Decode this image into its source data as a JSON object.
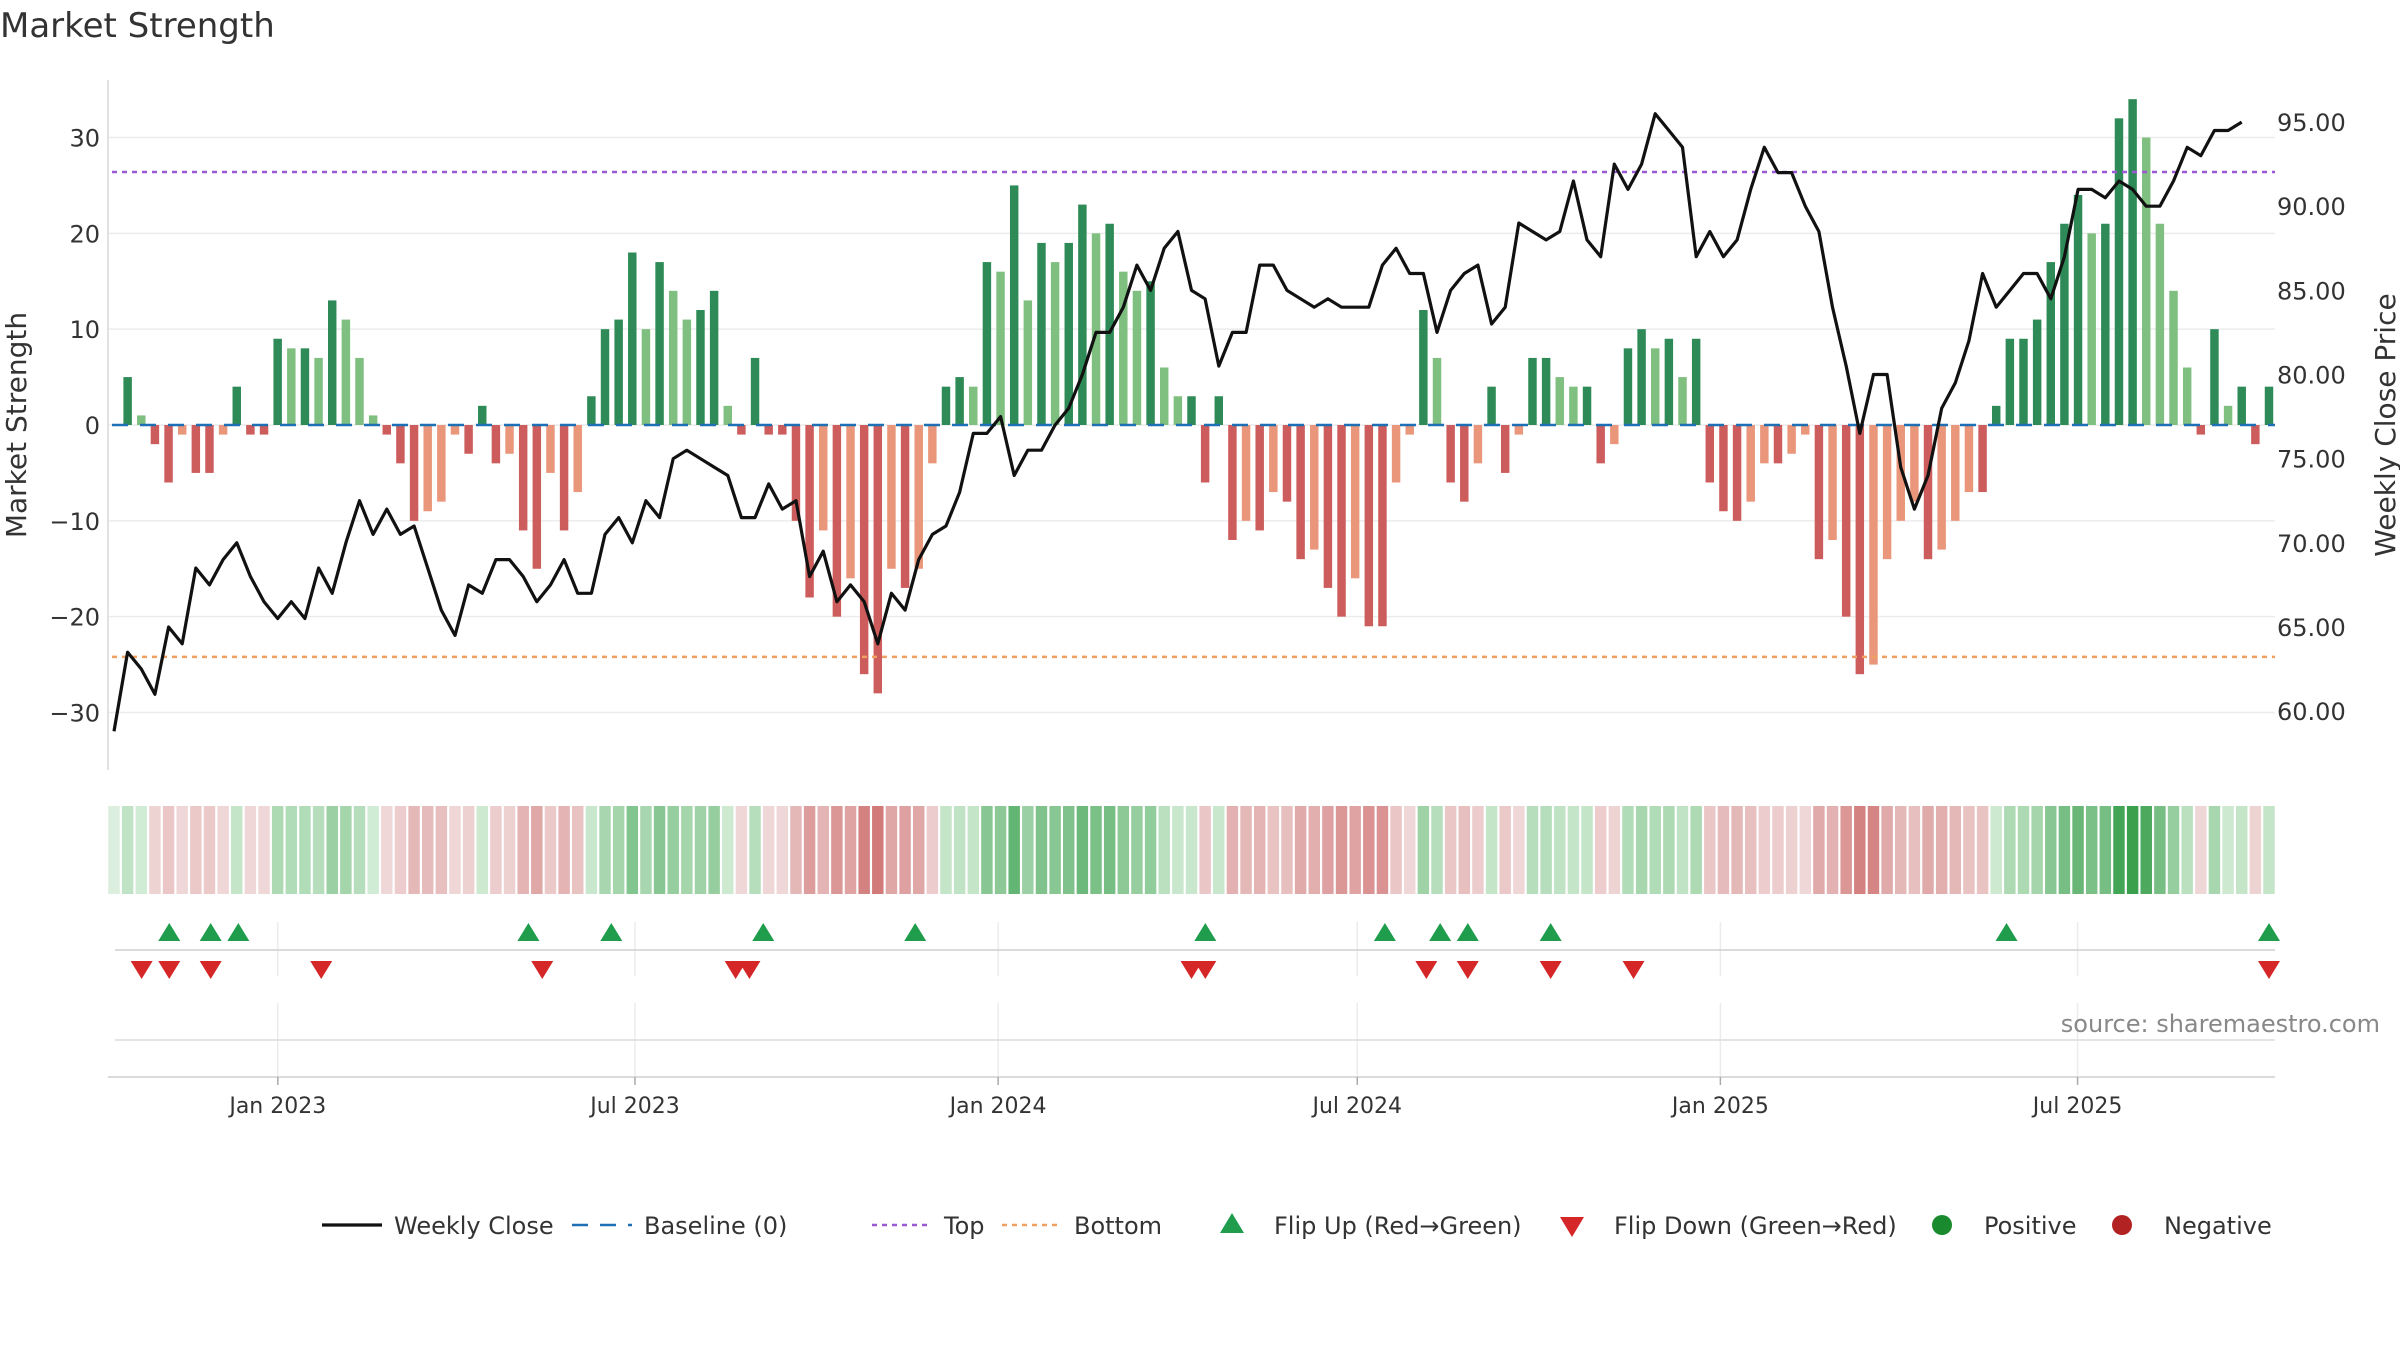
{
  "chart_data": {
    "type": "bar",
    "title": "Market Strength",
    "ylabel_left": "Market Strength",
    "ylabel_right": "Weekly Close Price",
    "left_axis": {
      "ylim": [
        -36,
        36
      ],
      "ticks": [
        30,
        20,
        10,
        0,
        -10,
        -20,
        -30
      ],
      "tick_labels": [
        "30",
        "20",
        "10",
        "0",
        "−10",
        "−20",
        "−30"
      ]
    },
    "right_axis": {
      "ylim": [
        56.5,
        97.5
      ],
      "ticks": [
        95,
        90,
        85,
        80,
        75,
        70,
        65,
        60
      ],
      "tick_labels": [
        "95.00",
        "90.00",
        "85.00",
        "80.00",
        "75.00",
        "70.00",
        "65.00",
        "60.00"
      ]
    },
    "top_threshold": 26.4,
    "bottom_threshold": -24.2,
    "baseline": 0,
    "x_start": "2022-10-10",
    "x_end": "2025-10-06",
    "x_ticks": [
      "2023-01-01",
      "2023-07-01",
      "2024-01-01",
      "2024-07-01",
      "2025-01-01",
      "2025-07-01"
    ],
    "x_tick_labels": [
      "Jan 2023",
      "Jul 2023",
      "Jan 2024",
      "Jul 2024",
      "Jan 2025",
      "Jul 2025"
    ],
    "strength": [
      0,
      5,
      1,
      -2,
      -6,
      -1,
      -5,
      -5,
      -1,
      4,
      -1,
      -1,
      9,
      8,
      8,
      7,
      13,
      11,
      7,
      1,
      -1,
      -4,
      -10,
      -9,
      -8,
      -1,
      -3,
      2,
      -4,
      -3,
      -11,
      -15,
      -5,
      -11,
      -7,
      3,
      10,
      11,
      18,
      10,
      17,
      14,
      11,
      12,
      14,
      2,
      -1,
      7,
      -1,
      -1,
      -10,
      -18,
      -11,
      -20,
      -16,
      -26,
      -28,
      -15,
      -17,
      -15,
      -4,
      4,
      5,
      4,
      17,
      16,
      25,
      13,
      19,
      17,
      19,
      23,
      20,
      21,
      16,
      14,
      15,
      6,
      3,
      3,
      -6,
      3,
      -12,
      -10,
      -11,
      -7,
      -8,
      -14,
      -13,
      -17,
      -20,
      -16,
      -21,
      -21,
      -6,
      -1,
      12,
      7,
      -6,
      -8,
      -4,
      4,
      -5,
      -1,
      7,
      7,
      5,
      4,
      4,
      -4,
      -2,
      8,
      10,
      8,
      9,
      5,
      9,
      -6,
      -9,
      -10,
      -8,
      -4,
      -4,
      -3,
      -1,
      -14,
      -12,
      -20,
      -26,
      -25,
      -14,
      -10,
      -8,
      -14,
      -13,
      -10,
      -7,
      -7,
      2,
      9,
      9,
      11,
      17,
      21,
      24,
      20,
      21,
      32,
      34,
      30,
      21,
      14,
      6,
      -1,
      10,
      2,
      4,
      -2,
      4
    ],
    "weekly_close": [
      58.8,
      63.5,
      62.5,
      61.0,
      65.0,
      64.0,
      68.5,
      67.5,
      69.0,
      70.0,
      68.0,
      66.5,
      65.5,
      66.5,
      65.5,
      68.5,
      67.0,
      70.0,
      72.5,
      70.5,
      72.0,
      70.5,
      71.0,
      68.5,
      66.0,
      64.5,
      67.5,
      67.0,
      69.0,
      69.0,
      68.0,
      66.5,
      67.5,
      69.0,
      67.0,
      67.0,
      70.5,
      71.5,
      70.0,
      72.5,
      71.5,
      75.0,
      75.5,
      75.0,
      74.5,
      74.0,
      71.5,
      71.5,
      73.5,
      72.0,
      72.5,
      68.0,
      69.5,
      66.5,
      67.5,
      66.5,
      64.0,
      67.0,
      66.0,
      69.0,
      70.5,
      71.0,
      73.0,
      76.5,
      76.5,
      77.5,
      74.0,
      75.5,
      75.5,
      77.0,
      78.0,
      80.0,
      82.5,
      82.5,
      84.0,
      86.5,
      85.0,
      87.5,
      88.5,
      85.0,
      84.5,
      80.5,
      82.5,
      82.5,
      86.5,
      86.5,
      85.0,
      84.5,
      84.0,
      84.5,
      84.0,
      84.0,
      84.0,
      86.5,
      87.5,
      86.0,
      86.0,
      82.5,
      85.0,
      86.0,
      86.5,
      83.0,
      84.0,
      89.0,
      88.5,
      88.0,
      88.5,
      91.5,
      88.0,
      87.0,
      92.5,
      91.0,
      92.5,
      95.5,
      94.5,
      93.5,
      87.0,
      88.5,
      87.0,
      88.0,
      91.0,
      93.5,
      92.0,
      92.0,
      90.0,
      88.5,
      84.0,
      80.5,
      76.5,
      80.0,
      80.0,
      74.5,
      72.0,
      74.0,
      78.0,
      79.5,
      82.0,
      86.0,
      84.0,
      85.0,
      86.0,
      86.0,
      84.5,
      87.0,
      91.0,
      91.0,
      90.5,
      91.5,
      91.0,
      90.0,
      90.0,
      91.5,
      93.5,
      93.0,
      94.5,
      94.5,
      95.0
    ],
    "flip_up": [
      "2022-11-07",
      "2022-11-28",
      "2022-12-12",
      "2023-05-08",
      "2023-06-19",
      "2023-09-04",
      "2023-11-20",
      "2024-04-15",
      "2024-07-15",
      "2024-08-12",
      "2024-08-26",
      "2024-10-07",
      "2025-05-26",
      "2025-10-06"
    ],
    "flip_down": [
      "2022-10-24",
      "2022-11-07",
      "2022-11-28",
      "2023-01-23",
      "2023-05-15",
      "2023-08-21",
      "2023-08-28",
      "2024-04-08",
      "2024-04-15",
      "2024-08-05",
      "2024-08-26",
      "2024-10-07",
      "2024-11-18",
      "2025-10-06"
    ],
    "legend": [
      {
        "label": "Weekly Close",
        "kind": "line",
        "color": "#111111"
      },
      {
        "label": "Baseline (0)",
        "kind": "dash",
        "color": "#1f6fb5"
      },
      {
        "label": "Top",
        "kind": "dot",
        "color": "#9b59d6"
      },
      {
        "label": "Bottom",
        "kind": "dot",
        "color": "#f0a060"
      },
      {
        "label": "Flip Up (Red→Green)",
        "kind": "tri-up",
        "color": "#1f9d4d"
      },
      {
        "label": "Flip Down (Green→Red)",
        "kind": "tri-down",
        "color": "#d62728"
      },
      {
        "label": "Positive",
        "kind": "circle",
        "color": "#1a8a2e"
      },
      {
        "label": "Negative",
        "kind": "circle",
        "color": "#b22222"
      }
    ],
    "colors": {
      "pos_dark": "#2e8b57",
      "pos_light": "#7fbf7f",
      "neg_dark": "#cd5c5c",
      "neg_light": "#e9967a",
      "line": "#111111",
      "baseline": "#1f6fb5",
      "top": "#9b59d6",
      "bottom": "#f0a060",
      "flip_up": "#1f9d4d",
      "flip_down": "#d62728"
    },
    "source": "source: sharemaestro.com"
  }
}
